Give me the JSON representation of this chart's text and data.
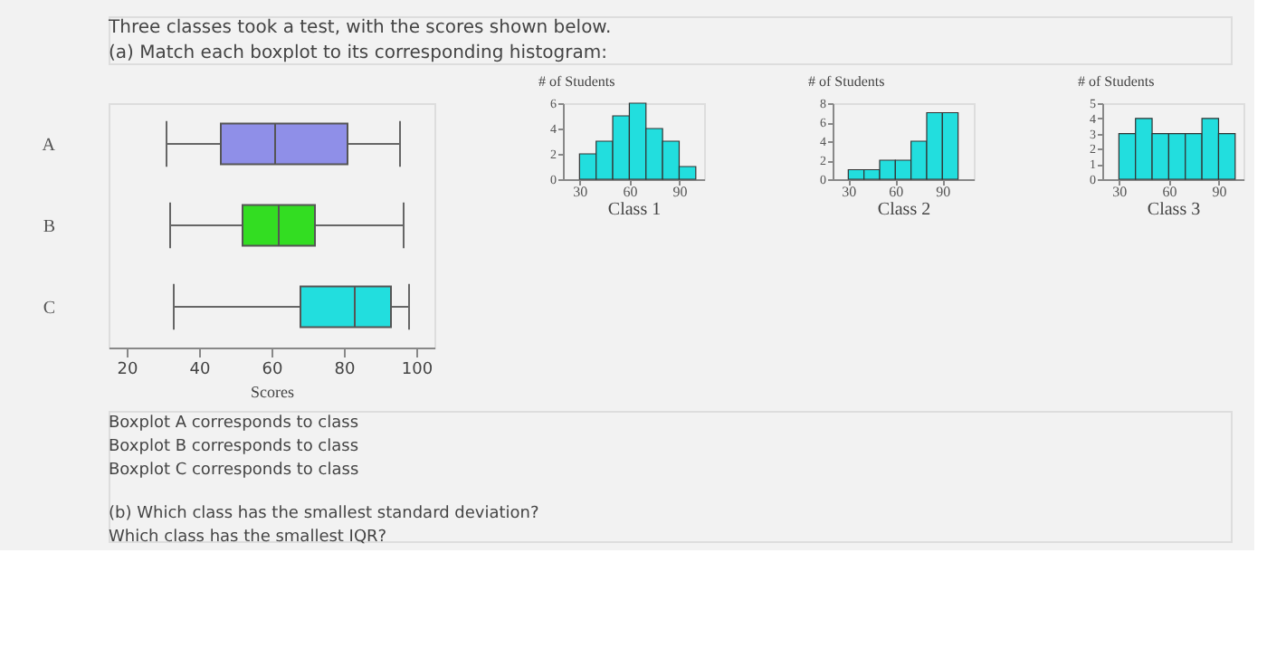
{
  "chart_data": [
    {
      "type": "box",
      "title": "Three classes took a test, with the scores shown below.",
      "subtitle": "(a) Match each boxplot to its corresponding histogram:",
      "orientation": "horizontal",
      "categories": [
        "A",
        "B",
        "C"
      ],
      "xlabel": "Scores",
      "xlim": [
        15,
        105
      ],
      "xticks": [
        20,
        40,
        60,
        80,
        100
      ],
      "colors": [
        "#8f8fe8",
        "#33dd22",
        "#22dede"
      ],
      "boxes": [
        {
          "low": 31,
          "q1": 46,
          "median": 61,
          "q3": 81,
          "high": 95.5
        },
        {
          "low": 32,
          "q1": 52,
          "median": 62,
          "q3": 72,
          "high": 96.5
        },
        {
          "low": 33,
          "q1": 68,
          "median": 83,
          "q3": 93,
          "high": 98
        }
      ],
      "annotations": [
        "Boxplot A corresponds to class",
        "Boxplot B corresponds to class",
        "Boxplot C corresponds to class",
        "(b) Which class has the smallest standard deviation?",
        "Which class has the smallest IQR?"
      ]
    },
    {
      "type": "histogram",
      "ylabel": "# of Students",
      "xlabel": "Class 1",
      "color": "#22dede",
      "bins": [
        30,
        40,
        50,
        60,
        70,
        80,
        90,
        100
      ],
      "values": [
        2,
        3,
        5,
        6,
        4,
        3,
        1
      ],
      "xlim": [
        20,
        105
      ],
      "xticks": [
        30,
        60,
        90
      ],
      "ylim": [
        0,
        6
      ],
      "yticks": [
        0,
        2,
        4,
        6
      ]
    },
    {
      "type": "histogram",
      "ylabel": "# of Students",
      "xlabel": "Class 2",
      "color": "#22dede",
      "bins": [
        30,
        40,
        50,
        60,
        70,
        80,
        90,
        100
      ],
      "values": [
        1,
        1,
        2,
        2,
        4,
        7,
        7
      ],
      "xlim": [
        20,
        110
      ],
      "xticks": [
        30,
        60,
        90
      ],
      "ylim": [
        0,
        8
      ],
      "yticks": [
        0,
        2,
        4,
        6,
        8
      ]
    },
    {
      "type": "histogram",
      "ylabel": "# of Students",
      "xlabel": "Class 3",
      "color": "#22dede",
      "bins": [
        30,
        40,
        50,
        60,
        70,
        80,
        90,
        100
      ],
      "values": [
        3,
        4,
        3,
        3,
        3,
        4,
        3
      ],
      "xlim": [
        20,
        105
      ],
      "xticks": [
        30,
        60,
        90
      ],
      "ylim": [
        0,
        5
      ],
      "yticks": [
        0,
        1,
        2,
        3,
        4,
        5
      ]
    }
  ]
}
